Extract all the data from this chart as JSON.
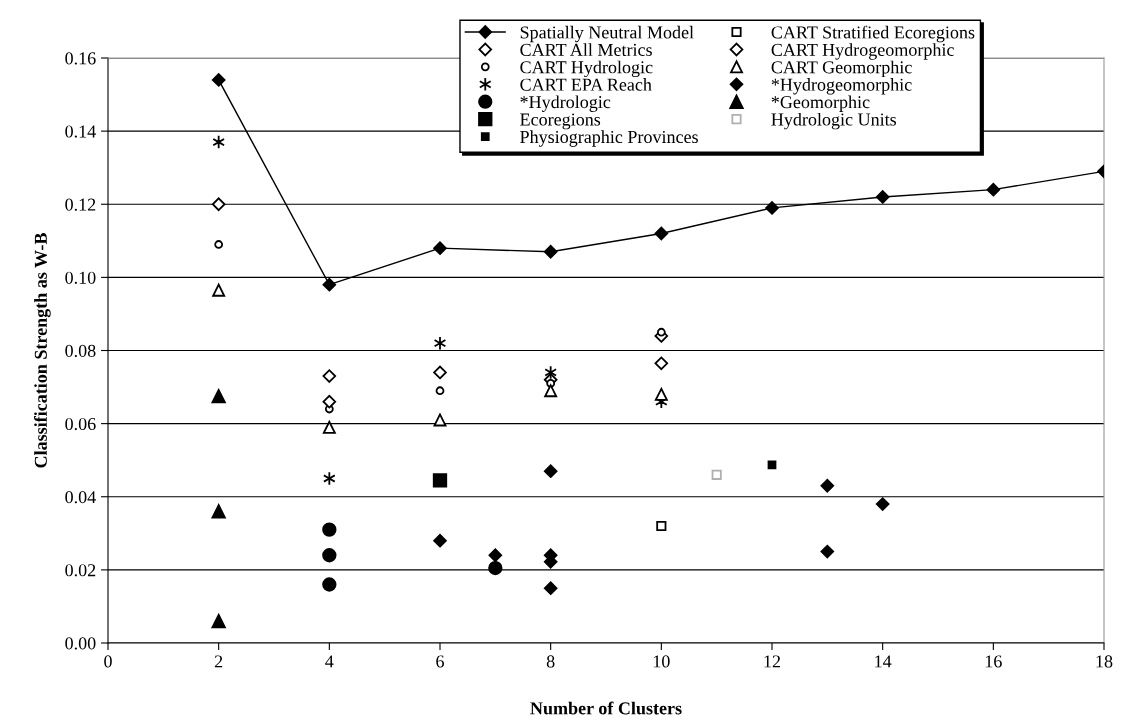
{
  "chart_data": {
    "type": "scatter",
    "xlabel": "Number of Clusters",
    "ylabel": "Classification Strength as W-B",
    "xlim": [
      0,
      18
    ],
    "xticks": [
      0,
      2,
      4,
      6,
      8,
      10,
      12,
      14,
      16,
      18
    ],
    "ylim": [
      0,
      0.16
    ],
    "yticks": [
      {
        "value": 0,
        "label": "0.00"
      },
      {
        "value": 0.02,
        "label": "0.02"
      },
      {
        "value": 0.04,
        "label": "0.04"
      },
      {
        "value": 0.06,
        "label": "0.06"
      },
      {
        "value": 0.08,
        "label": "0.08"
      },
      {
        "value": 0.1,
        "label": "0.10"
      },
      {
        "value": 0.12,
        "label": "0.12"
      },
      {
        "value": 0.14,
        "label": "0.14"
      },
      {
        "value": 0.16,
        "label": "0.16"
      }
    ],
    "grid": "y",
    "legend": "top right",
    "series": [
      {
        "name": "Spatially Neutral Model",
        "type": "line",
        "marker": "diamond",
        "color": "#000000",
        "x": [
          2,
          4,
          6,
          8,
          10,
          12,
          14,
          16,
          18
        ],
        "values": [
          0.154,
          0.098,
          0.108,
          0.107,
          0.112,
          0.119,
          0.122,
          0.124,
          0.129
        ]
      },
      {
        "name": "CART All Metrics",
        "marker": "diamond-open",
        "color": "#000000",
        "x": [
          2,
          4,
          6,
          8,
          10
        ],
        "values": [
          0.12,
          0.073,
          0.074,
          0.072,
          0.084
        ]
      },
      {
        "name": "CART Hydrologic",
        "marker": "circle-open",
        "color": "#000000",
        "x": [
          2,
          4,
          6,
          8,
          10
        ],
        "values": [
          0.109,
          0.064,
          0.069,
          0.071,
          0.085
        ]
      },
      {
        "name": "CART EPA Reach",
        "marker": "cross",
        "color": "#000000",
        "x": [
          2,
          4,
          6,
          8,
          10
        ],
        "values": [
          0.137,
          0.045,
          0.082,
          0.074,
          0.066
        ]
      },
      {
        "name": "*Hydrologic",
        "marker": "circle",
        "color": "#000000",
        "x": [
          4,
          4,
          4,
          7
        ],
        "values": [
          0.031,
          0.024,
          0.016,
          0.0205
        ]
      },
      {
        "name": "Ecoregions",
        "marker": "square",
        "color": "#000000",
        "x": [
          6
        ],
        "values": [
          0.0445
        ]
      },
      {
        "name": "Physiographic Provinces",
        "marker": "square-small",
        "color": "#000000",
        "x": [
          12
        ],
        "values": [
          0.0487
        ]
      },
      {
        "name": "CART Stratified Ecoregions",
        "marker": "square-open",
        "color": "#000000",
        "x": [
          10
        ],
        "values": [
          0.032
        ]
      },
      {
        "name": "CART Hydrogeomorphic",
        "marker": "diamond-open",
        "color": "#000000",
        "x": [
          4,
          10
        ],
        "values": [
          0.066,
          0.0765
        ]
      },
      {
        "name": "CART Geomorphic",
        "marker": "triangle-open",
        "color": "#000000",
        "x": [
          2,
          4,
          6,
          8,
          10
        ],
        "values": [
          0.0965,
          0.059,
          0.061,
          0.069,
          0.068
        ]
      },
      {
        "name": "*Hydrogeomorphic",
        "marker": "diamond",
        "color": "#000000",
        "x": [
          6,
          7,
          8,
          8,
          8,
          8,
          13,
          13,
          14
        ],
        "values": [
          0.028,
          0.024,
          0.047,
          0.024,
          0.0222,
          0.015,
          0.043,
          0.025,
          0.038
        ]
      },
      {
        "name": "*Geomorphic",
        "marker": "triangle",
        "color": "#000000",
        "x": [
          2,
          2,
          2
        ],
        "values": [
          0.0675,
          0.036,
          0.006
        ]
      },
      {
        "name": "Hydrologic Units",
        "marker": "square-open",
        "color": "#b0b0b0",
        "x": [
          11
        ],
        "values": [
          0.046
        ]
      }
    ]
  }
}
